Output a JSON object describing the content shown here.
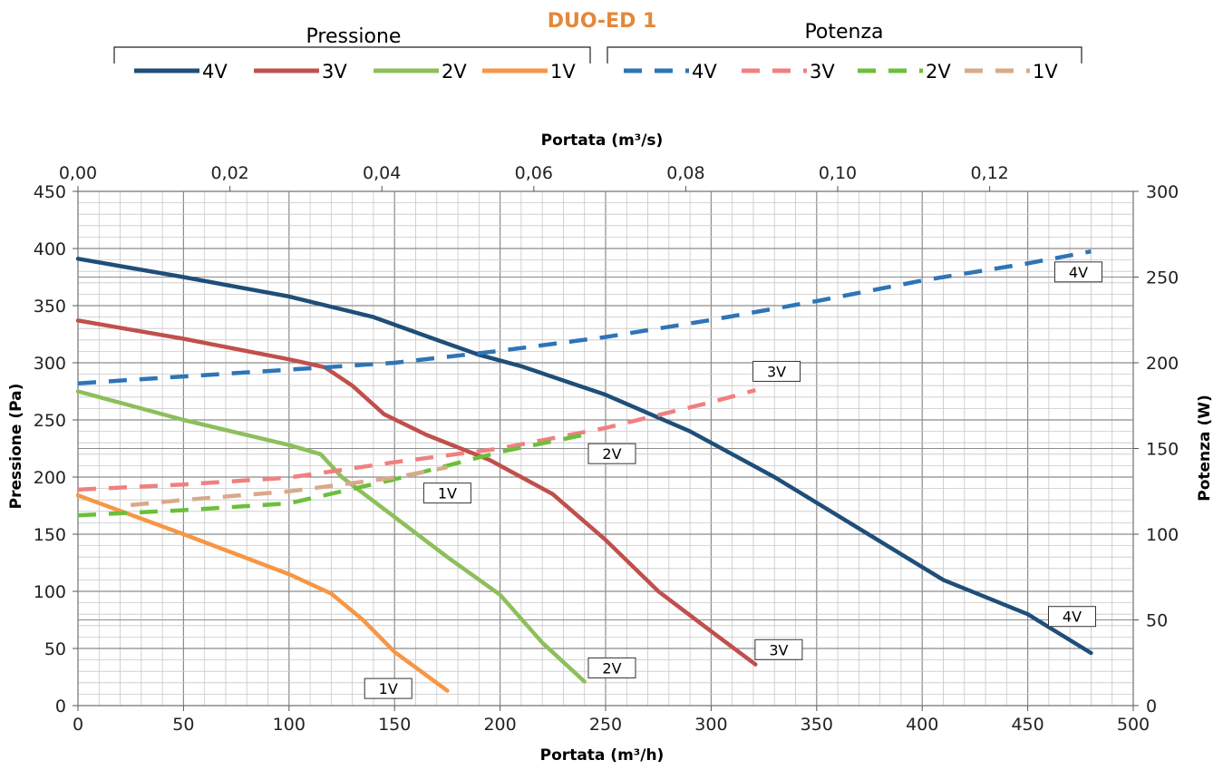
{
  "title": "DUO-ED 1",
  "title_color": "#E3883A",
  "legend": {
    "pressure_heading": "Pressione",
    "power_heading": "Potenza"
  },
  "chart_data": {
    "type": "line",
    "title": "DUO-ED 1",
    "xlabel": "Portata (m³/h)",
    "xlabel_secondary": "Portata (m³/s)",
    "ylabel": "Pressione (Pa)",
    "ylabel_secondary": "Potenza (W)",
    "xlim": [
      0,
      500
    ],
    "ylim": [
      0,
      450
    ],
    "ylim_secondary": [
      0,
      300
    ],
    "xlim_secondary": [
      0,
      0.1389
    ],
    "x_ticks": [
      0,
      50,
      100,
      150,
      200,
      250,
      300,
      350,
      400,
      450,
      500
    ],
    "y_ticks": [
      0,
      50,
      100,
      150,
      200,
      250,
      300,
      350,
      400,
      450
    ],
    "y2_ticks": [
      0,
      50,
      100,
      150,
      200,
      250,
      300
    ],
    "x2_ticks": [
      "0,00",
      "0,02",
      "0,04",
      "0,06",
      "0,08",
      "0,10",
      "0,12"
    ],
    "x2_tick_values": [
      0,
      0.02,
      0.04,
      0.06,
      0.08,
      0.1,
      0.12
    ],
    "grid": true,
    "legend_position": "top",
    "series": [
      {
        "name": "4V",
        "group": "Pressione",
        "axis": "left",
        "style": "solid",
        "color": "#1F4E79",
        "x": [
          0,
          50,
          100,
          140,
          170,
          190,
          210,
          250,
          290,
          330,
          370,
          410,
          450,
          480
        ],
        "y": [
          391,
          375,
          358,
          340,
          320,
          307,
          297,
          272,
          240,
          200,
          155,
          110,
          80,
          46
        ],
        "callout": "4V",
        "callout_x": 471,
        "callout_y": 78
      },
      {
        "name": "3V",
        "group": "Pressione",
        "axis": "left",
        "style": "solid",
        "color": "#C0504D",
        "x": [
          0,
          50,
          100,
          117,
          130,
          145,
          165,
          195,
          225,
          250,
          275,
          300,
          321
        ],
        "y": [
          337,
          321,
          303,
          296,
          280,
          255,
          237,
          215,
          185,
          145,
          100,
          65,
          36
        ],
        "callout": "3V",
        "callout_x": 332,
        "callout_y": 49
      },
      {
        "name": "2V",
        "group": "Pressione",
        "axis": "left",
        "style": "solid",
        "color": "#8DBF5C",
        "x": [
          0,
          50,
          100,
          115,
          125,
          150,
          175,
          200,
          220,
          240
        ],
        "y": [
          275,
          250,
          228,
          220,
          200,
          165,
          130,
          97,
          55,
          21
        ],
        "callout": "2V",
        "callout_x": 253,
        "callout_y": 33
      },
      {
        "name": "1V",
        "group": "Pressione",
        "axis": "left",
        "style": "solid",
        "color": "#F79646",
        "x": [
          0,
          50,
          100,
          120,
          135,
          150,
          175
        ],
        "y": [
          184,
          150,
          115,
          98,
          75,
          47,
          13
        ],
        "callout": "1V",
        "callout_x": 147,
        "callout_y": 15
      },
      {
        "name": "4V",
        "group": "Potenza",
        "axis": "right",
        "style": "dashed",
        "color": "#2E75B6",
        "x": [
          0,
          50,
          100,
          150,
          200,
          250,
          300,
          350,
          400,
          450,
          480
        ],
        "y": [
          188,
          192,
          196,
          200,
          207,
          215,
          225,
          236,
          248,
          258,
          265
        ],
        "callout": "4V",
        "callout_x": 474,
        "callout_y": 253
      },
      {
        "name": "3V",
        "group": "Potenza",
        "axis": "right",
        "style": "dashed",
        "color": "#F08080",
        "x": [
          0,
          50,
          100,
          150,
          200,
          250,
          300,
          321
        ],
        "y": [
          126,
          129,
          133,
          142,
          150,
          162,
          177,
          184
        ],
        "callout": "3V",
        "callout_x": 331,
        "callout_y": 195
      },
      {
        "name": "2V",
        "group": "Potenza",
        "axis": "right",
        "style": "dashed",
        "color": "#6CBF3A",
        "x": [
          0,
          50,
          100,
          150,
          200,
          240
        ],
        "y": [
          111,
          114,
          118,
          132,
          148,
          158
        ],
        "callout": "2V",
        "callout_x": 253,
        "callout_y": 147
      },
      {
        "name": "1V",
        "group": "Potenza",
        "axis": "right",
        "style": "dashed",
        "color": "#D9A98A",
        "x": [
          25,
          50,
          100,
          150,
          175
        ],
        "y": [
          117,
          120,
          125,
          133,
          139
        ],
        "callout": "1V",
        "callout_x": 175,
        "callout_y": 124
      }
    ]
  }
}
